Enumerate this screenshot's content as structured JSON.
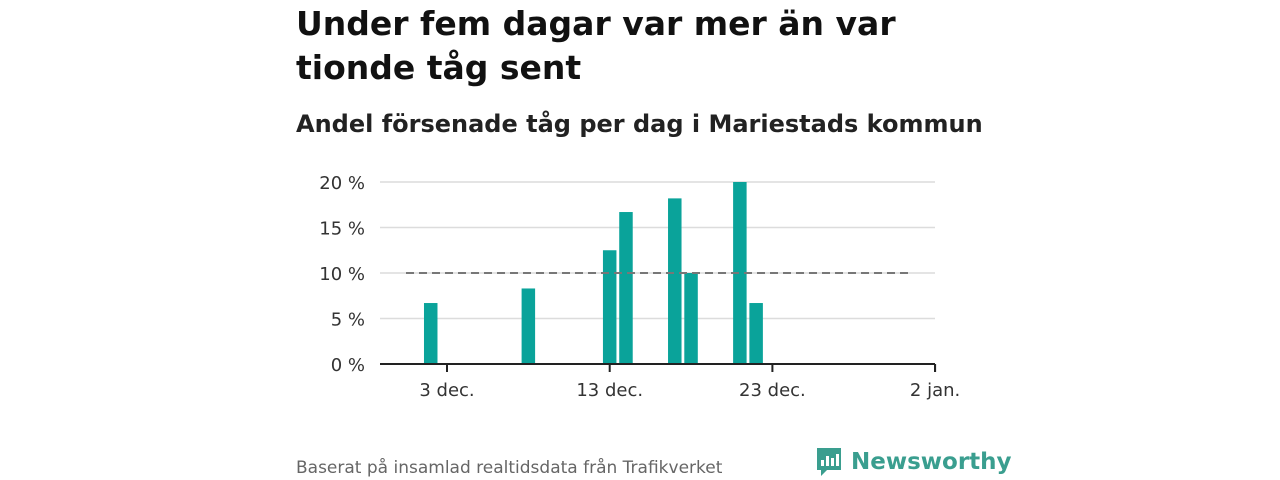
{
  "title": "Under fem dagar var mer än var tionde tåg sent",
  "subtitle": "Andel försenade tåg per dag i Mariestads kommun",
  "source": "Baserat på insamlad realtidsdata från Trafikverket",
  "brand": {
    "name": "Newsworthy",
    "icon": "newsworthy-logo-icon",
    "color": "#3a9e8f"
  },
  "chart_data": {
    "type": "bar",
    "x_ticks": [
      "3 dec.",
      "13 dec.",
      "23 dec.",
      "2 jan."
    ],
    "y_ticks": [
      "0 %",
      "5 %",
      "10 %",
      "15 %",
      "20 %"
    ],
    "ylim": [
      0,
      20
    ],
    "grid": true,
    "bar_color": "#0aa39a",
    "reference_line": {
      "value": 10,
      "style": "dashed",
      "color": "#777777"
    },
    "dates": [
      "2 dec.",
      "8 dec.",
      "13 dec.",
      "14 dec.",
      "17 dec.",
      "18 dec.",
      "21 dec.",
      "22 dec."
    ],
    "values": [
      6.7,
      8.3,
      12.5,
      16.7,
      18.2,
      10.0,
      20.0,
      6.7
    ]
  }
}
